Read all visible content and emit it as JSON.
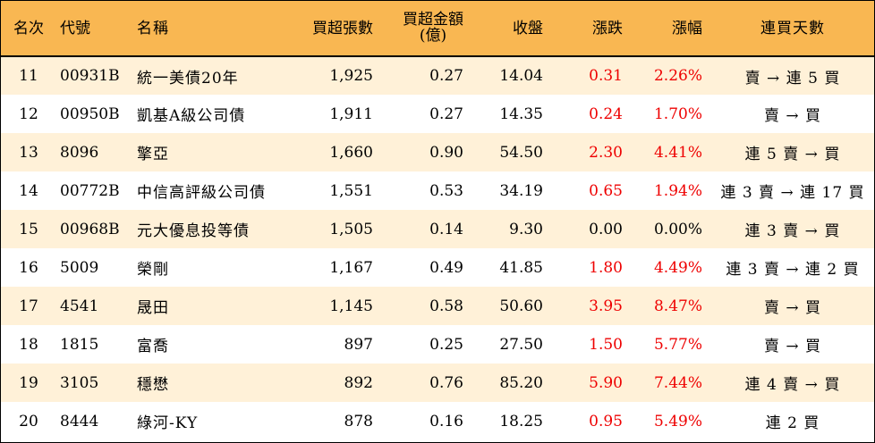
{
  "header": {
    "rank": "名次",
    "code": "代號",
    "name": "名稱",
    "net_buy_lots": "買超張數",
    "net_buy_amount_line1": "買超金額",
    "net_buy_amount_line2": "(億)",
    "close": "收盤",
    "change": "漲跌",
    "change_pct": "漲幅",
    "consecutive_days": "連買天數"
  },
  "colors": {
    "header_bg": "#f9b752",
    "odd_row_bg": "#fff1d8",
    "even_row_bg": "#ffffff",
    "up_color": "#ee0000"
  },
  "rows": [
    {
      "rank": "11",
      "code": "00931B",
      "name": "統一美債20年",
      "lots": "1,925",
      "amount": "0.27",
      "close": "14.04",
      "change": "0.31",
      "pct": "2.26%",
      "streak": "賣 → 連 5 買",
      "up": true
    },
    {
      "rank": "12",
      "code": "00950B",
      "name": "凱基A級公司債",
      "lots": "1,911",
      "amount": "0.27",
      "close": "14.35",
      "change": "0.24",
      "pct": "1.70%",
      "streak": "賣 → 買",
      "up": true
    },
    {
      "rank": "13",
      "code": "8096",
      "name": "擎亞",
      "lots": "1,660",
      "amount": "0.90",
      "close": "54.50",
      "change": "2.30",
      "pct": "4.41%",
      "streak": "連 5 賣 → 買",
      "up": true
    },
    {
      "rank": "14",
      "code": "00772B",
      "name": "中信高評級公司債",
      "lots": "1,551",
      "amount": "0.53",
      "close": "34.19",
      "change": "0.65",
      "pct": "1.94%",
      "streak": "連 3 賣 → 連 17 買",
      "up": true
    },
    {
      "rank": "15",
      "code": "00968B",
      "name": "元大優息投等債",
      "lots": "1,505",
      "amount": "0.14",
      "close": "9.30",
      "change": "0.00",
      "pct": "0.00%",
      "streak": "連 3 賣 → 買",
      "up": false
    },
    {
      "rank": "16",
      "code": "5009",
      "name": "榮剛",
      "lots": "1,167",
      "amount": "0.49",
      "close": "41.85",
      "change": "1.80",
      "pct": "4.49%",
      "streak": "連 3 賣 → 連 2 買",
      "up": true
    },
    {
      "rank": "17",
      "code": "4541",
      "name": "晟田",
      "lots": "1,145",
      "amount": "0.58",
      "close": "50.60",
      "change": "3.95",
      "pct": "8.47%",
      "streak": "賣 → 買",
      "up": true
    },
    {
      "rank": "18",
      "code": "1815",
      "name": "富喬",
      "lots": "897",
      "amount": "0.25",
      "close": "27.50",
      "change": "1.50",
      "pct": "5.77%",
      "streak": "賣 → 買",
      "up": true
    },
    {
      "rank": "19",
      "code": "3105",
      "name": "穩懋",
      "lots": "892",
      "amount": "0.76",
      "close": "85.20",
      "change": "5.90",
      "pct": "7.44%",
      "streak": "連 4 賣 → 買",
      "up": true
    },
    {
      "rank": "20",
      "code": "8444",
      "name": "綠河-KY",
      "lots": "878",
      "amount": "0.16",
      "close": "18.25",
      "change": "0.95",
      "pct": "5.49%",
      "streak": "連 2 買",
      "up": true
    }
  ]
}
